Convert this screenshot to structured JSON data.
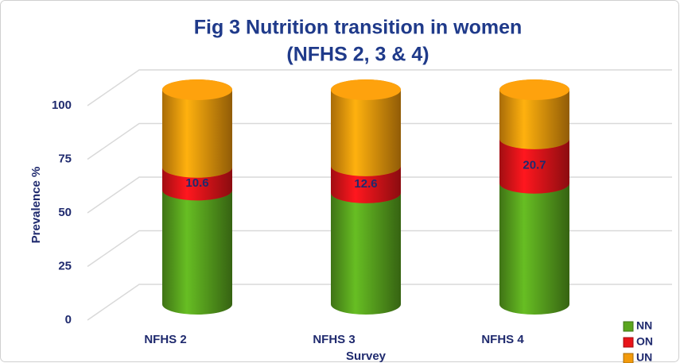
{
  "chart_data": {
    "type": "bar3d_stacked",
    "title": "Fig 3 Nutrition transition in women",
    "subtitle": "(NFHS 2, 3 & 4)",
    "x_label": "Survey",
    "y_label": "Prevalence %",
    "categories": [
      "NFHS 2",
      "NFHS 3",
      "NFHS 4"
    ],
    "series": [
      {
        "name": "NN",
        "color": "#5aa51e",
        "values": [
          53.2,
          51.9,
          56.4
        ]
      },
      {
        "name": "ON",
        "color": "#e8141a",
        "values": [
          10.6,
          12.6,
          20.7
        ],
        "show_labels": true
      },
      {
        "name": "UN",
        "color": "#f29a0c",
        "values": [
          36.2,
          35.5,
          22.9
        ]
      }
    ],
    "ylim": [
      0,
      100
    ],
    "yticks": [
      0,
      25,
      50,
      75,
      100
    ],
    "grid": true,
    "legend": "bottom-right"
  }
}
